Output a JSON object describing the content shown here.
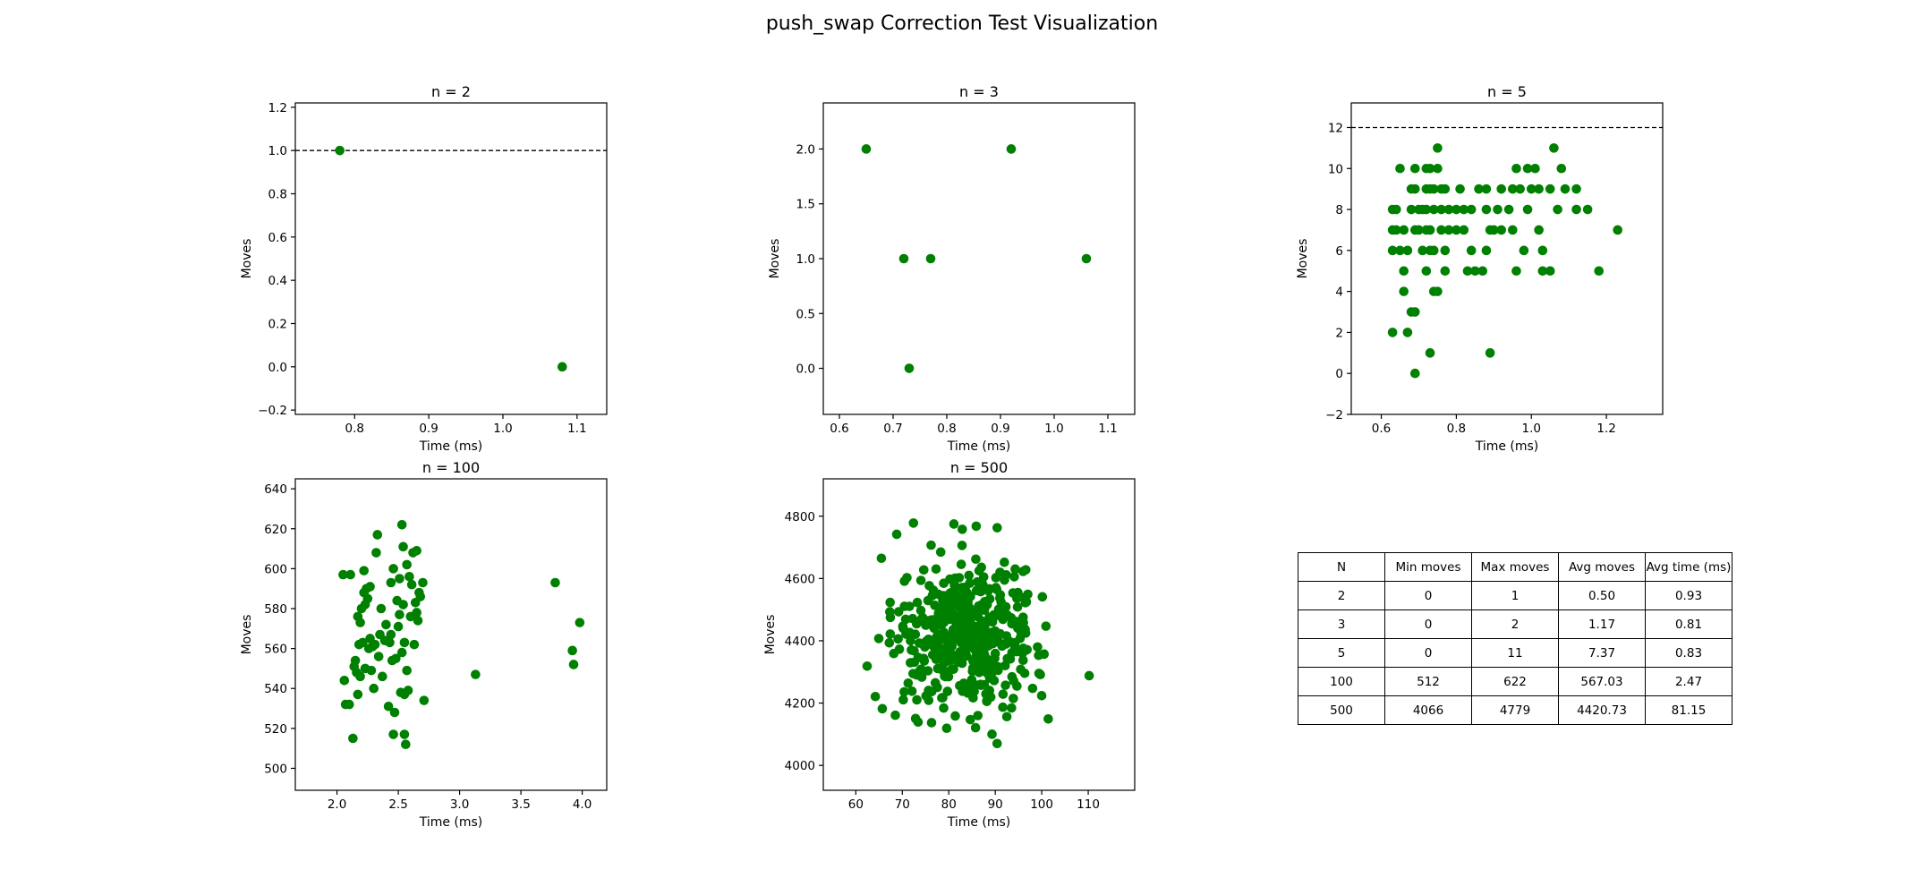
{
  "figure": {
    "title": "push_swap Correction Test Visualization"
  },
  "colors": {
    "points": "#008000",
    "reference_line": "#000000"
  },
  "chart_data": [
    {
      "type": "scatter",
      "title": "n = 2",
      "xlabel": "Time (ms)",
      "ylabel": "Moves",
      "xlim": [
        0.72,
        1.14
      ],
      "ylim": [
        -0.22,
        1.22
      ],
      "xticks": [
        0.8,
        0.9,
        1.0,
        1.1
      ],
      "yticks": [
        -0.2,
        0.0,
        0.2,
        0.4,
        0.6,
        0.8,
        1.0,
        1.2
      ],
      "x_decimals": 1,
      "y_decimals": 1,
      "reference_line": 1,
      "points": [
        [
          0.78,
          1
        ],
        [
          1.08,
          0
        ]
      ]
    },
    {
      "type": "scatter",
      "title": "n = 3",
      "xlabel": "Time (ms)",
      "ylabel": "Moves",
      "xlim": [
        0.57,
        1.15
      ],
      "ylim": [
        -0.42,
        2.42
      ],
      "xticks": [
        0.6,
        0.7,
        0.8,
        0.9,
        1.0,
        1.1
      ],
      "yticks": [
        0.0,
        0.5,
        1.0,
        1.5,
        2.0
      ],
      "x_decimals": 1,
      "y_decimals": 1,
      "reference_line": null,
      "points": [
        [
          0.65,
          2
        ],
        [
          0.92,
          2
        ],
        [
          0.72,
          1
        ],
        [
          0.77,
          1
        ],
        [
          1.06,
          1
        ],
        [
          0.73,
          0
        ]
      ]
    },
    {
      "type": "scatter",
      "title": "n = 5",
      "xlabel": "Time (ms)",
      "ylabel": "Moves",
      "xlim": [
        0.52,
        1.35
      ],
      "ylim": [
        -2.0,
        13.2
      ],
      "xticks": [
        0.6,
        0.8,
        1.0,
        1.2
      ],
      "yticks": [
        -2,
        0,
        2,
        4,
        6,
        8,
        10,
        12
      ],
      "x_decimals": 1,
      "y_decimals": 0,
      "reference_line": 12,
      "points": [
        [
          0.63,
          7
        ],
        [
          0.64,
          7
        ],
        [
          0.63,
          8
        ],
        [
          0.64,
          8
        ],
        [
          0.63,
          6
        ],
        [
          0.65,
          6
        ],
        [
          0.66,
          7
        ],
        [
          0.65,
          10
        ],
        [
          0.67,
          6
        ],
        [
          0.66,
          5
        ],
        [
          0.63,
          2
        ],
        [
          0.66,
          4
        ],
        [
          0.68,
          9
        ],
        [
          0.69,
          9
        ],
        [
          0.69,
          10
        ],
        [
          0.68,
          8
        ],
        [
          0.7,
          8
        ],
        [
          0.69,
          7
        ],
        [
          0.7,
          7
        ],
        [
          0.71,
          8
        ],
        [
          0.72,
          9
        ],
        [
          0.68,
          3
        ],
        [
          0.69,
          3
        ],
        [
          0.67,
          2
        ],
        [
          0.69,
          0
        ],
        [
          0.72,
          10
        ],
        [
          0.73,
          10
        ],
        [
          0.73,
          9
        ],
        [
          0.74,
          9
        ],
        [
          0.72,
          8
        ],
        [
          0.74,
          8
        ],
        [
          0.72,
          7
        ],
        [
          0.73,
          7
        ],
        [
          0.71,
          6
        ],
        [
          0.73,
          6
        ],
        [
          0.74,
          6
        ],
        [
          0.72,
          5
        ],
        [
          0.74,
          4
        ],
        [
          0.75,
          4
        ],
        [
          0.73,
          1
        ],
        [
          0.75,
          11
        ],
        [
          0.75,
          10
        ],
        [
          0.76,
          9
        ],
        [
          0.77,
          9
        ],
        [
          0.76,
          8
        ],
        [
          0.78,
          8
        ],
        [
          0.76,
          7
        ],
        [
          0.78,
          7
        ],
        [
          0.77,
          6
        ],
        [
          0.77,
          5
        ],
        [
          0.8,
          8
        ],
        [
          0.81,
          9
        ],
        [
          0.8,
          7
        ],
        [
          0.82,
          7
        ],
        [
          0.82,
          8
        ],
        [
          0.83,
          5
        ],
        [
          0.84,
          8
        ],
        [
          0.84,
          6
        ],
        [
          0.85,
          5
        ],
        [
          0.86,
          9
        ],
        [
          0.87,
          5
        ],
        [
          0.88,
          9
        ],
        [
          0.88,
          8
        ],
        [
          0.88,
          6
        ],
        [
          0.89,
          1
        ],
        [
          0.89,
          7
        ],
        [
          0.9,
          7
        ],
        [
          0.91,
          8
        ],
        [
          0.92,
          7
        ],
        [
          0.92,
          9
        ],
        [
          0.94,
          8
        ],
        [
          0.95,
          9
        ],
        [
          0.95,
          7
        ],
        [
          0.96,
          5
        ],
        [
          0.96,
          10
        ],
        [
          0.97,
          9
        ],
        [
          0.98,
          6
        ],
        [
          0.99,
          10
        ],
        [
          0.99,
          8
        ],
        [
          1.0,
          9
        ],
        [
          1.01,
          10
        ],
        [
          1.02,
          7
        ],
        [
          1.02,
          9
        ],
        [
          1.03,
          6
        ],
        [
          1.03,
          5
        ],
        [
          1.05,
          9
        ],
        [
          1.05,
          5
        ],
        [
          1.06,
          11
        ],
        [
          1.07,
          8
        ],
        [
          1.08,
          10
        ],
        [
          1.09,
          9
        ],
        [
          1.12,
          8
        ],
        [
          1.12,
          9
        ],
        [
          1.15,
          8
        ],
        [
          1.18,
          5
        ],
        [
          1.23,
          7
        ]
      ]
    },
    {
      "type": "scatter",
      "title": "n = 100",
      "xlabel": "Time (ms)",
      "ylabel": "Moves",
      "xlim": [
        1.66,
        4.2
      ],
      "ylim": [
        489,
        645
      ],
      "xticks": [
        2.0,
        2.5,
        3.0,
        3.5,
        4.0
      ],
      "yticks": [
        500,
        520,
        540,
        560,
        580,
        600,
        620,
        640
      ],
      "x_decimals": 1,
      "y_decimals": 0,
      "reference_line": null,
      "points": [
        [
          2.05,
          597
        ],
        [
          2.06,
          544
        ],
        [
          2.07,
          532
        ],
        [
          2.1,
          532
        ],
        [
          2.11,
          597
        ],
        [
          2.13,
          515
        ],
        [
          2.14,
          551
        ],
        [
          2.15,
          554
        ],
        [
          2.16,
          548
        ],
        [
          2.17,
          537
        ],
        [
          2.17,
          576
        ],
        [
          2.18,
          562
        ],
        [
          2.19,
          546
        ],
        [
          2.19,
          573
        ],
        [
          2.2,
          580
        ],
        [
          2.21,
          563
        ],
        [
          2.22,
          599
        ],
        [
          2.22,
          588
        ],
        [
          2.23,
          582
        ],
        [
          2.23,
          550
        ],
        [
          2.24,
          590
        ],
        [
          2.25,
          585
        ],
        [
          2.26,
          560
        ],
        [
          2.27,
          591
        ],
        [
          2.27,
          565
        ],
        [
          2.28,
          549
        ],
        [
          2.29,
          561
        ],
        [
          2.3,
          540
        ],
        [
          2.31,
          562
        ],
        [
          2.32,
          608
        ],
        [
          2.33,
          617
        ],
        [
          2.34,
          556
        ],
        [
          2.35,
          567
        ],
        [
          2.36,
          580
        ],
        [
          2.37,
          546
        ],
        [
          2.39,
          564
        ],
        [
          2.4,
          572
        ],
        [
          2.42,
          531
        ],
        [
          2.43,
          563
        ],
        [
          2.44,
          593
        ],
        [
          2.44,
          567
        ],
        [
          2.45,
          554
        ],
        [
          2.46,
          600
        ],
        [
          2.46,
          517
        ],
        [
          2.47,
          528
        ],
        [
          2.48,
          555
        ],
        [
          2.49,
          584
        ],
        [
          2.5,
          571
        ],
        [
          2.51,
          595
        ],
        [
          2.51,
          577
        ],
        [
          2.52,
          538
        ],
        [
          2.53,
          558
        ],
        [
          2.53,
          622
        ],
        [
          2.54,
          611
        ],
        [
          2.54,
          582
        ],
        [
          2.55,
          563
        ],
        [
          2.55,
          537
        ],
        [
          2.55,
          517
        ],
        [
          2.56,
          512
        ],
        [
          2.57,
          602
        ],
        [
          2.57,
          549
        ],
        [
          2.58,
          539
        ],
        [
          2.59,
          596
        ],
        [
          2.6,
          576
        ],
        [
          2.61,
          592
        ],
        [
          2.62,
          608
        ],
        [
          2.63,
          562
        ],
        [
          2.64,
          583
        ],
        [
          2.65,
          609
        ],
        [
          2.65,
          578
        ],
        [
          2.66,
          574
        ],
        [
          2.67,
          588
        ],
        [
          2.68,
          586
        ],
        [
          2.7,
          593
        ],
        [
          2.71,
          534
        ],
        [
          3.13,
          547
        ],
        [
          3.78,
          593
        ],
        [
          3.92,
          559
        ],
        [
          3.93,
          552
        ],
        [
          3.98,
          573
        ]
      ]
    },
    {
      "type": "scatter",
      "title": "n = 500",
      "xlabel": "Time (ms)",
      "ylabel": "Moves",
      "xlim": [
        53,
        120
      ],
      "ylim": [
        3920,
        4920
      ],
      "xticks": [
        60,
        70,
        80,
        90,
        100,
        110
      ],
      "yticks": [
        4000,
        4200,
        4400,
        4600,
        4800
      ],
      "x_decimals": 0,
      "y_decimals": 0,
      "reference_line": null,
      "cluster": {
        "count": 420,
        "center_x": 84,
        "center_y": 4420,
        "sd_x": 8,
        "sd_y": 120,
        "x_range": [
          62,
          101
        ],
        "y_range": [
          4060,
          4780
        ]
      },
      "points": [
        [
          65.5,
          4665
        ],
        [
          68.8,
          4742
        ],
        [
          72.4,
          4778
        ],
        [
          81.1,
          4775
        ],
        [
          82.9,
          4758
        ],
        [
          85.9,
          4768
        ],
        [
          76.2,
          4707
        ],
        [
          110.2,
          4288
        ],
        [
          101.4,
          4149
        ],
        [
          64.2,
          4221
        ],
        [
          65.7,
          4182
        ],
        [
          68.5,
          4161
        ],
        [
          76.3,
          4137
        ],
        [
          89.3,
          4100
        ],
        [
          90.4,
          4070
        ],
        [
          99.1,
          4380
        ]
      ]
    }
  ],
  "table": {
    "headers": [
      "N",
      "Min moves",
      "Max moves",
      "Avg moves",
      "Avg time (ms)"
    ],
    "rows": [
      [
        "2",
        "0",
        "1",
        "0.50",
        "0.93"
      ],
      [
        "3",
        "0",
        "2",
        "1.17",
        "0.81"
      ],
      [
        "5",
        "0",
        "11",
        "7.37",
        "0.83"
      ],
      [
        "100",
        "512",
        "622",
        "567.03",
        "2.47"
      ],
      [
        "500",
        "4066",
        "4779",
        "4420.73",
        "81.15"
      ]
    ]
  }
}
